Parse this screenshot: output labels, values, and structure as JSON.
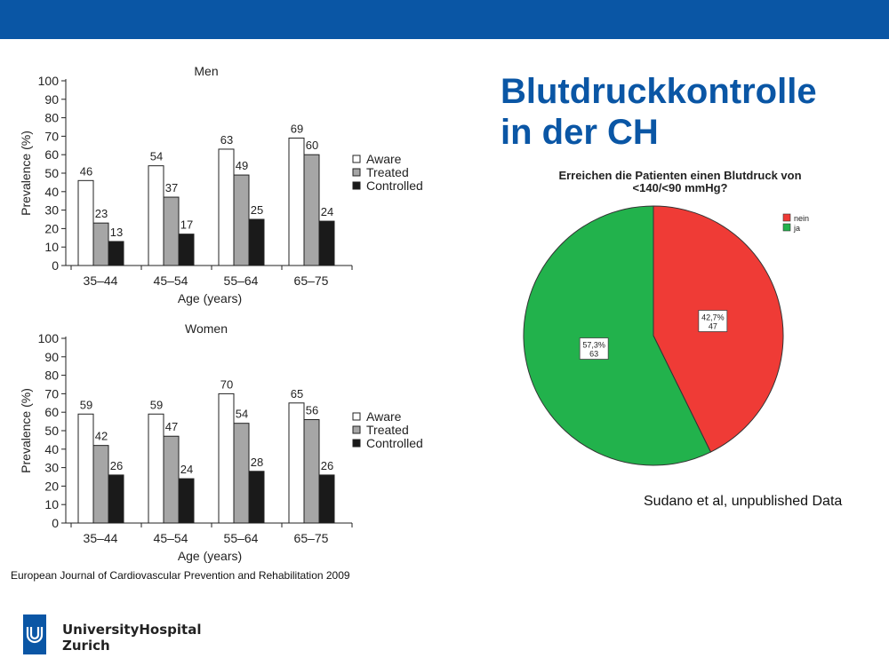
{
  "slide": {
    "title_line1": "Blutdruckkontrolle",
    "title_line2": "in der CH",
    "source_left": "European Journal of Cardiovascular Prevention and Rehabilitation 2009",
    "source_right": "Sudano et al, unpublished Data",
    "brand_line1": "UniversityHospital",
    "brand_line2": "Zurich",
    "colors": {
      "header_blue": "#0a56a5"
    }
  },
  "chart_data": [
    {
      "type": "bar",
      "title": "Men",
      "xlabel": "Age (years)",
      "ylabel": "Prevalence (%)",
      "ylim": [
        0,
        100
      ],
      "yticks": [
        0,
        10,
        20,
        30,
        40,
        50,
        60,
        70,
        80,
        90,
        100
      ],
      "categories": [
        "35–44",
        "45–54",
        "55–64",
        "65–75"
      ],
      "series": [
        {
          "name": "Aware",
          "color": "#ffffff",
          "values": [
            46,
            54,
            63,
            69
          ]
        },
        {
          "name": "Treated",
          "color": "#a6a6a6",
          "values": [
            23,
            37,
            49,
            60
          ]
        },
        {
          "name": "Controlled",
          "color": "#1a1a1a",
          "values": [
            13,
            17,
            25,
            24
          ]
        }
      ],
      "legend": "right",
      "grid": false
    },
    {
      "type": "bar",
      "title": "Women",
      "xlabel": "Age (years)",
      "ylabel": "Prevalence (%)",
      "ylim": [
        0,
        100
      ],
      "yticks": [
        0,
        10,
        20,
        30,
        40,
        50,
        60,
        70,
        80,
        90,
        100
      ],
      "categories": [
        "35–44",
        "45–54",
        "55–64",
        "65–75"
      ],
      "series": [
        {
          "name": "Aware",
          "color": "#ffffff",
          "values": [
            59,
            59,
            70,
            65
          ]
        },
        {
          "name": "Treated",
          "color": "#a6a6a6",
          "values": [
            42,
            47,
            54,
            56
          ]
        },
        {
          "name": "Controlled",
          "color": "#1a1a1a",
          "values": [
            26,
            24,
            28,
            26
          ]
        }
      ],
      "legend": "right",
      "grid": false
    },
    {
      "type": "pie",
      "title_line1": "Erreichen die Patienten einen Blutdruck von",
      "title_line2": "<140/<90 mmHg?",
      "slices": [
        {
          "name": "nein",
          "percent_label": "42,7%",
          "count": 47,
          "color": "#ef3b36"
        },
        {
          "name": "ja",
          "percent_label": "57,3%",
          "count": 63,
          "color": "#22b24c"
        }
      ],
      "start": "top",
      "direction": "clockwise",
      "legend": "top-right"
    }
  ]
}
